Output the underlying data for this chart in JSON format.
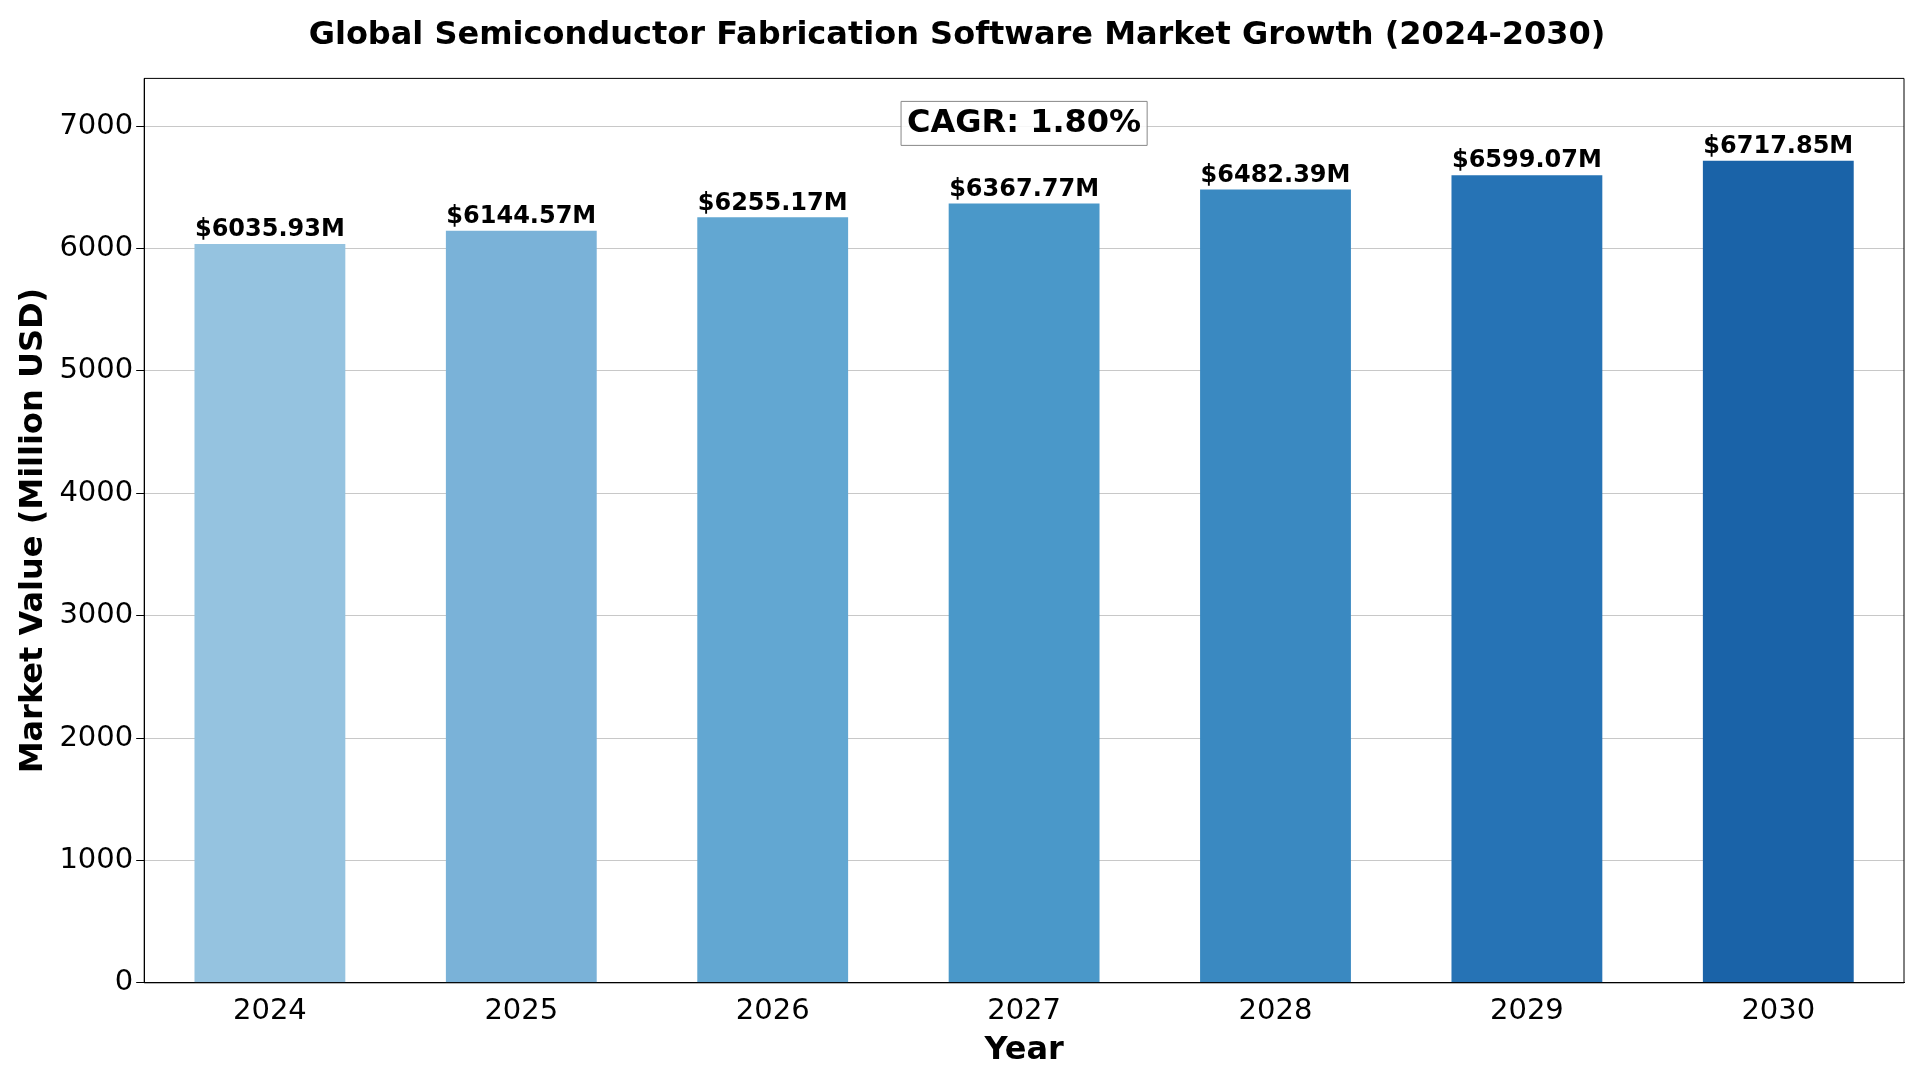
{
  "chart_data": {
    "type": "bar",
    "title": "Global Semiconductor Fabrication Software Market Growth (2024-2030)",
    "xlabel": "Year",
    "ylabel": "Market Value (Million USD)",
    "categories": [
      "2024",
      "2025",
      "2026",
      "2027",
      "2028",
      "2029",
      "2030"
    ],
    "values": [
      6035.93,
      6144.57,
      6255.17,
      6367.77,
      6482.39,
      6599.07,
      6717.85
    ],
    "colors": [
      "#95c3e0",
      "#7ab2d8",
      "#62a7d2",
      "#4a98c9",
      "#3a89c1",
      "#2673b5",
      "#1a63a8"
    ],
    "value_labels": [
      "$6035.93M",
      "$6144.57M",
      "$6255.17M",
      "$6367.77M",
      "$6482.39M",
      "$6599.07M",
      "$6717.85M"
    ],
    "annotations": [
      "CAGR: 1.80%"
    ],
    "ylim": [
      0,
      7390
    ],
    "yticks": [
      0,
      1000,
      2000,
      3000,
      4000,
      5000,
      6000,
      7000
    ],
    "grid": "y",
    "legend": false
  }
}
